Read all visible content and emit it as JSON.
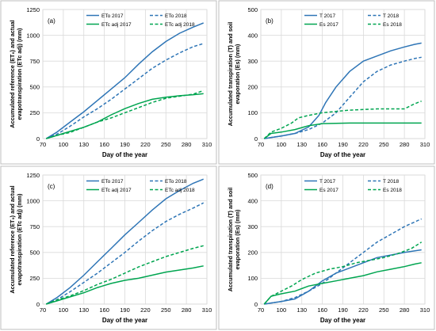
{
  "chart_data": [
    {
      "type": "line",
      "panel_label": "(a)",
      "ylabel_lines": [
        "Accumulated reference (ET₀) and actual",
        "evapotranspiration (ETc adj) (mm)"
      ],
      "xlabel": "Day of the year",
      "xlim": [
        70,
        310
      ],
      "ylim": [
        0,
        1250
      ],
      "xticks": [
        70,
        100,
        130,
        160,
        190,
        220,
        250,
        280,
        310
      ],
      "yticks": [
        0,
        250,
        500,
        750,
        1000,
        1250
      ],
      "grid": true,
      "legend_position": "top",
      "series": [
        {
          "name": "ETo 2017",
          "color": "#2e75b6",
          "dash": "solid",
          "x": [
            75,
            90,
            110,
            130,
            150,
            170,
            190,
            210,
            230,
            250,
            270,
            290,
            305
          ],
          "y": [
            0,
            60,
            160,
            260,
            370,
            480,
            590,
            720,
            840,
            940,
            1020,
            1080,
            1120
          ]
        },
        {
          "name": "ETo 2018",
          "color": "#2e75b6",
          "dash": "dashed",
          "x": [
            75,
            90,
            110,
            130,
            150,
            170,
            190,
            210,
            230,
            250,
            270,
            290,
            305
          ],
          "y": [
            0,
            40,
            120,
            210,
            290,
            380,
            480,
            580,
            680,
            760,
            830,
            890,
            920
          ]
        },
        {
          "name": "ETc adj 2017",
          "color": "#00a550",
          "dash": "solid",
          "x": [
            75,
            90,
            110,
            130,
            150,
            170,
            190,
            210,
            230,
            250,
            270,
            290,
            305
          ],
          "y": [
            0,
            30,
            70,
            110,
            160,
            230,
            290,
            340,
            380,
            400,
            415,
            425,
            435
          ]
        },
        {
          "name": "ETc adj 2018",
          "color": "#00a550",
          "dash": "dashed",
          "x": [
            75,
            90,
            110,
            130,
            150,
            170,
            190,
            210,
            230,
            250,
            270,
            290,
            305
          ],
          "y": [
            0,
            30,
            60,
            110,
            160,
            200,
            250,
            300,
            350,
            390,
            410,
            430,
            465
          ]
        }
      ]
    },
    {
      "type": "line",
      "panel_label": "(b)",
      "ylabel_lines": [
        "Accumulated transpiration (T) and soil",
        "evaporation (Es) (mm)"
      ],
      "xlabel": "Day of the year",
      "xlim": [
        70,
        310
      ],
      "ylim": [
        0,
        500
      ],
      "xticks": [
        70,
        100,
        130,
        160,
        190,
        220,
        250,
        280,
        310
      ],
      "yticks": [
        0,
        100,
        200,
        300,
        400,
        500
      ],
      "grid": true,
      "legend_position": "top",
      "series": [
        {
          "name": "T 2017",
          "color": "#2e75b6",
          "dash": "solid",
          "x": [
            75,
            100,
            120,
            140,
            155,
            165,
            180,
            200,
            220,
            240,
            260,
            280,
            295,
            305
          ],
          "y": [
            0,
            10,
            20,
            45,
            90,
            140,
            200,
            260,
            300,
            320,
            340,
            355,
            365,
            370
          ]
        },
        {
          "name": "T 2018",
          "color": "#2e75b6",
          "dash": "dashed",
          "x": [
            75,
            100,
            120,
            140,
            160,
            180,
            200,
            220,
            240,
            260,
            280,
            295,
            305
          ],
          "y": [
            0,
            10,
            20,
            35,
            60,
            100,
            160,
            220,
            260,
            285,
            300,
            310,
            315
          ]
        },
        {
          "name": "Es 2017",
          "color": "#00a550",
          "dash": "solid",
          "x": [
            75,
            85,
            100,
            120,
            140,
            160,
            200,
            240,
            280,
            305
          ],
          "y": [
            0,
            20,
            25,
            35,
            50,
            58,
            60,
            60,
            60,
            60
          ]
        },
        {
          "name": "Es 2018",
          "color": "#00a550",
          "dash": "dashed",
          "x": [
            75,
            85,
            100,
            115,
            125,
            140,
            160,
            200,
            240,
            280,
            295,
            305
          ],
          "y": [
            0,
            25,
            40,
            60,
            80,
            90,
            100,
            110,
            115,
            115,
            135,
            145
          ]
        }
      ]
    },
    {
      "type": "line",
      "panel_label": "(c)",
      "ylabel_lines": [
        "Accumulated reference (ET₀) and actual",
        "evapotranspiration (ETc adj) (mm)"
      ],
      "xlabel": "Day of the year",
      "xlim": [
        70,
        310
      ],
      "ylim": [
        0,
        1250
      ],
      "xticks": [
        70,
        100,
        130,
        160,
        190,
        220,
        250,
        280,
        310
      ],
      "yticks": [
        0,
        250,
        500,
        750,
        1000,
        1250
      ],
      "grid": true,
      "legend_position": "top",
      "series": [
        {
          "name": "ETo 2017",
          "color": "#2e75b6",
          "dash": "solid",
          "x": [
            75,
            90,
            110,
            130,
            150,
            170,
            190,
            210,
            230,
            250,
            270,
            290,
            305
          ],
          "y": [
            0,
            60,
            160,
            280,
            410,
            540,
            670,
            790,
            910,
            1020,
            1100,
            1170,
            1210
          ]
        },
        {
          "name": "ETo 2018",
          "color": "#2e75b6",
          "dash": "dashed",
          "x": [
            75,
            90,
            110,
            130,
            150,
            170,
            190,
            210,
            230,
            250,
            270,
            290,
            305
          ],
          "y": [
            0,
            40,
            120,
            210,
            300,
            400,
            500,
            610,
            710,
            800,
            870,
            930,
            980
          ]
        },
        {
          "name": "ETc adj 2017",
          "color": "#00a550",
          "dash": "solid",
          "x": [
            75,
            90,
            110,
            130,
            150,
            170,
            190,
            210,
            230,
            250,
            270,
            290,
            305
          ],
          "y": [
            0,
            30,
            70,
            110,
            160,
            200,
            230,
            250,
            280,
            310,
            330,
            350,
            370
          ]
        },
        {
          "name": "ETc adj 2018",
          "color": "#00a550",
          "dash": "dashed",
          "x": [
            75,
            90,
            110,
            130,
            150,
            170,
            190,
            210,
            230,
            250,
            270,
            290,
            305
          ],
          "y": [
            0,
            40,
            80,
            130,
            190,
            240,
            300,
            360,
            410,
            460,
            500,
            540,
            565
          ]
        }
      ]
    },
    {
      "type": "line",
      "panel_label": "(d)",
      "ylabel_lines": [
        "Accumulated transpiration (T) and soil",
        "evaporation (Es) (mm)"
      ],
      "xlabel": "Day of the year",
      "xlim": [
        70,
        310
      ],
      "ylim": [
        0,
        500
      ],
      "xticks": [
        70,
        100,
        130,
        160,
        190,
        220,
        250,
        280,
        310
      ],
      "yticks": [
        0,
        100,
        200,
        300,
        400,
        500
      ],
      "grid": true,
      "legend_position": "top",
      "series": [
        {
          "name": "T 2017",
          "color": "#2e75b6",
          "dash": "solid",
          "x": [
            75,
            100,
            120,
            140,
            160,
            180,
            200,
            220,
            240,
            260,
            280,
            305
          ],
          "y": [
            0,
            10,
            20,
            50,
            90,
            120,
            140,
            160,
            180,
            190,
            200,
            210
          ]
        },
        {
          "name": "T 2018",
          "color": "#2e75b6",
          "dash": "dashed",
          "x": [
            75,
            100,
            120,
            140,
            160,
            180,
            200,
            220,
            240,
            260,
            280,
            305
          ],
          "y": [
            0,
            10,
            25,
            50,
            80,
            120,
            160,
            200,
            240,
            270,
            300,
            330
          ]
        },
        {
          "name": "Es 2017",
          "color": "#00a550",
          "dash": "solid",
          "x": [
            75,
            85,
            100,
            120,
            140,
            160,
            180,
            200,
            220,
            240,
            260,
            280,
            295,
            305
          ],
          "y": [
            0,
            30,
            40,
            50,
            70,
            80,
            90,
            100,
            110,
            125,
            135,
            145,
            155,
            160
          ]
        },
        {
          "name": "Es 2018",
          "color": "#00a550",
          "dash": "dashed",
          "x": [
            75,
            85,
            100,
            115,
            130,
            150,
            170,
            190,
            210,
            230,
            250,
            270,
            290,
            305
          ],
          "y": [
            0,
            30,
            50,
            70,
            95,
            120,
            135,
            145,
            160,
            170,
            180,
            195,
            215,
            240
          ]
        }
      ]
    }
  ]
}
